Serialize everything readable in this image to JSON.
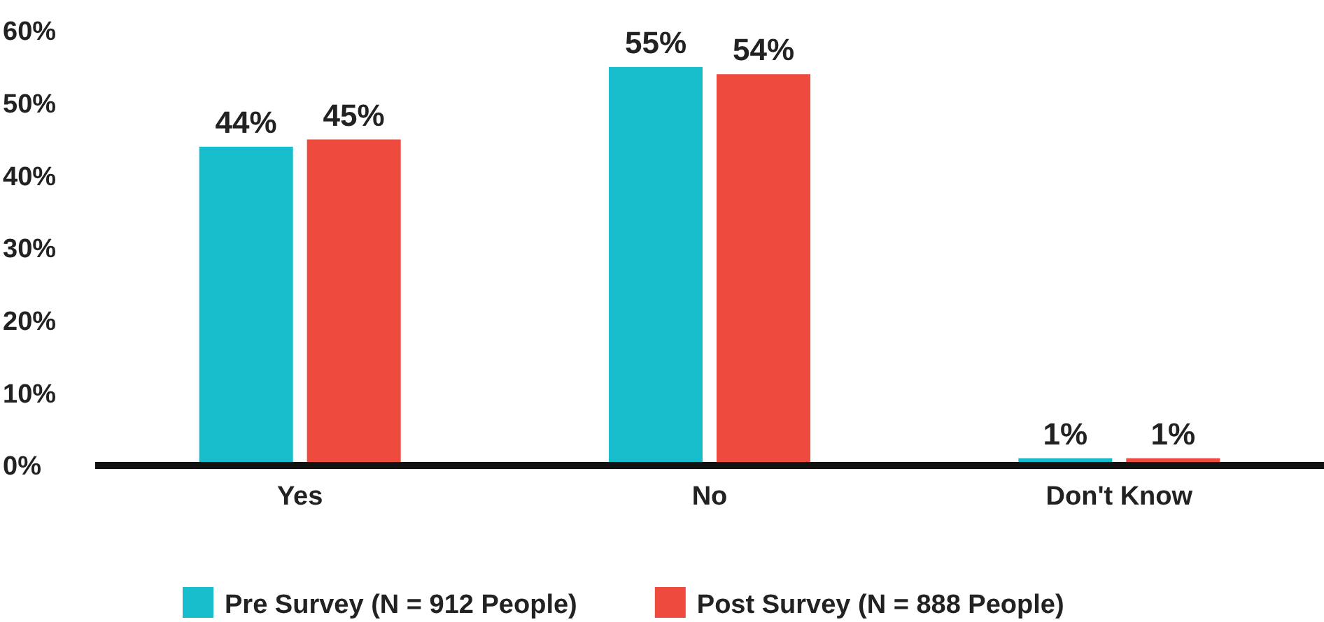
{
  "chart_data": {
    "type": "bar",
    "categories": [
      "Yes",
      "No",
      "Don't Know"
    ],
    "series": [
      {
        "name": "Pre Survey (N = 912 People)",
        "color": "#17bdca",
        "values": [
          44,
          55,
          1
        ],
        "value_labels": [
          "44%",
          "55%",
          "1%"
        ]
      },
      {
        "name": "Post Survey (N = 888 People)",
        "color": "#ef4a3e",
        "values": [
          45,
          54,
          1
        ],
        "value_labels": [
          "45%",
          "54%",
          "1%"
        ]
      }
    ],
    "ylim": [
      0,
      60
    ],
    "yticks": [
      {
        "value": 0,
        "label": "0%"
      },
      {
        "value": 10,
        "label": "10%"
      },
      {
        "value": 20,
        "label": "20%"
      },
      {
        "value": 30,
        "label": "30%"
      },
      {
        "value": 40,
        "label": "40%"
      },
      {
        "value": 50,
        "label": "50%"
      },
      {
        "value": 60,
        "label": "60%"
      }
    ],
    "grid": false,
    "legend": "bottom"
  }
}
